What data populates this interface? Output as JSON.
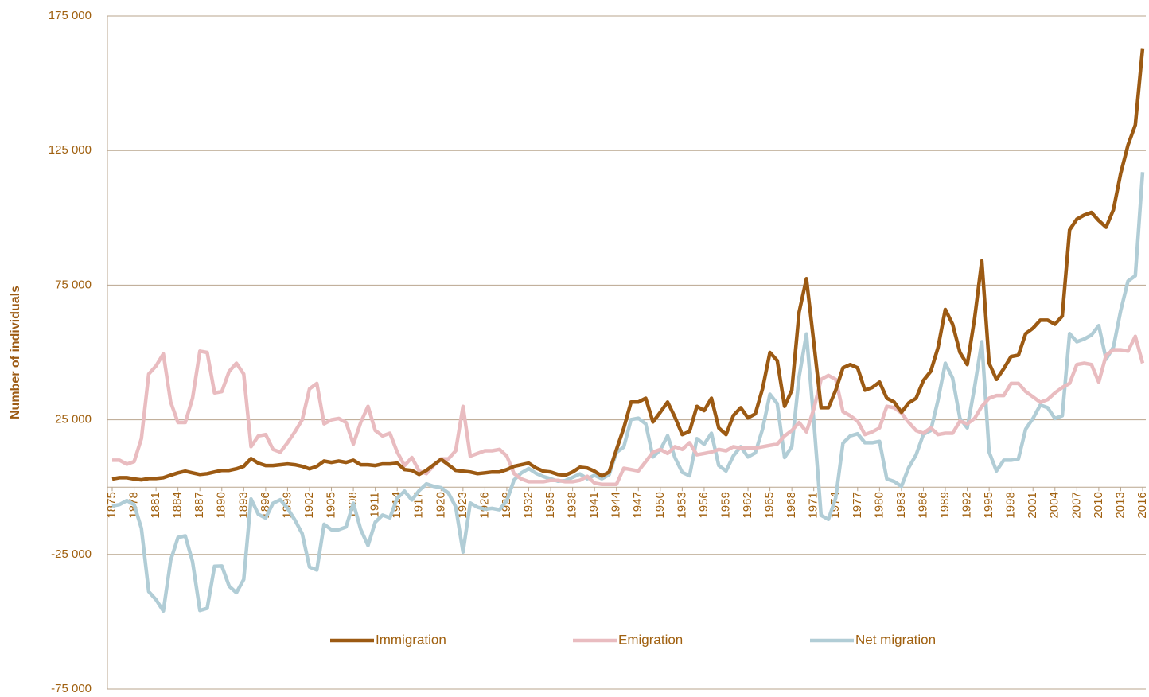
{
  "chart_data": {
    "type": "line",
    "y_label": "Number of individuals",
    "x": [
      1875,
      1876,
      1877,
      1878,
      1879,
      1880,
      1881,
      1882,
      1883,
      1884,
      1885,
      1886,
      1887,
      1888,
      1889,
      1890,
      1891,
      1892,
      1893,
      1894,
      1895,
      1896,
      1897,
      1898,
      1899,
      1900,
      1901,
      1902,
      1903,
      1904,
      1905,
      1906,
      1907,
      1908,
      1909,
      1910,
      1911,
      1912,
      1913,
      1914,
      1915,
      1916,
      1917,
      1918,
      1919,
      1920,
      1921,
      1922,
      1923,
      1924,
      1925,
      1926,
      1927,
      1928,
      1929,
      1930,
      1931,
      1932,
      1933,
      1934,
      1935,
      1936,
      1937,
      1938,
      1939,
      1940,
      1941,
      1942,
      1943,
      1944,
      1945,
      1946,
      1947,
      1948,
      1949,
      1950,
      1951,
      1952,
      1953,
      1954,
      1955,
      1956,
      1957,
      1958,
      1959,
      1960,
      1961,
      1962,
      1963,
      1964,
      1965,
      1966,
      1967,
      1968,
      1969,
      1970,
      1971,
      1972,
      1973,
      1974,
      1975,
      1976,
      1977,
      1978,
      1979,
      1980,
      1981,
      1982,
      1983,
      1984,
      1985,
      1986,
      1987,
      1988,
      1989,
      1990,
      1991,
      1992,
      1993,
      1994,
      1995,
      1996,
      1997,
      1998,
      1999,
      2000,
      2001,
      2002,
      2003,
      2004,
      2005,
      2006,
      2007,
      2008,
      2009,
      2010,
      2011,
      2012,
      2013,
      2014,
      2015,
      2016
    ],
    "xlim": [
      1875,
      2016
    ],
    "xticks": [
      1875,
      1878,
      1881,
      1884,
      1887,
      1890,
      1893,
      1896,
      1899,
      1902,
      1905,
      1908,
      1911,
      1914,
      1917,
      1920,
      1923,
      1926,
      1929,
      1932,
      1935,
      1938,
      1941,
      1944,
      1947,
      1950,
      1953,
      1956,
      1959,
      1962,
      1965,
      1968,
      1971,
      1974,
      1977,
      1980,
      1983,
      1986,
      1989,
      1992,
      1995,
      1998,
      2001,
      2004,
      2007,
      2010,
      2013,
      2016
    ],
    "ylim": [
      -75000,
      175000
    ],
    "yticks": [
      {
        "value": 175000,
        "label": "175 000"
      },
      {
        "value": 125000,
        "label": "125 000"
      },
      {
        "value": 75000,
        "label": "75 000"
      },
      {
        "value": 25000,
        "label": "25 000"
      },
      {
        "value": -25000,
        "label": "-25 000"
      },
      {
        "value": -75000,
        "label": "-75 000"
      }
    ],
    "grid": true,
    "legend": "bottom",
    "series": [
      {
        "name": "Immigration",
        "color": "#9c5a13",
        "values": [
          3000,
          3500,
          3500,
          3000,
          2700,
          3200,
          3200,
          3500,
          4400,
          5300,
          5900,
          5300,
          4700,
          5000,
          5600,
          6200,
          6200,
          6800,
          7700,
          10600,
          8900,
          8000,
          8000,
          8300,
          8600,
          8300,
          7700,
          6800,
          7700,
          9700,
          9200,
          9700,
          9200,
          10000,
          8300,
          8300,
          8000,
          8600,
          8600,
          8900,
          6500,
          6200,
          4700,
          6200,
          8300,
          10300,
          8300,
          6200,
          5900,
          5600,
          5000,
          5300,
          5600,
          5600,
          6500,
          7700,
          8300,
          8900,
          7100,
          5900,
          5600,
          4700,
          4400,
          5600,
          7400,
          7100,
          5900,
          4100,
          5600,
          13900,
          21900,
          31600,
          31600,
          33000,
          24200,
          27800,
          31600,
          26000,
          19500,
          20700,
          30000,
          28400,
          33000,
          22000,
          19500,
          26600,
          29500,
          25700,
          27200,
          36600,
          50000,
          47000,
          30000,
          36000,
          65000,
          77400,
          53800,
          29500,
          29500,
          36000,
          44300,
          45500,
          44300,
          36000,
          37000,
          39000,
          33000,
          31600,
          27800,
          31300,
          33000,
          39600,
          43000,
          51700,
          66000,
          60500,
          50000,
          45500,
          62600,
          84000,
          46000,
          40000,
          44000,
          48500,
          49000,
          57000,
          59000,
          62000,
          62000,
          60500,
          63500,
          95500,
          99500,
          101000,
          102000,
          99000,
          96500,
          103000,
          116500,
          127000,
          134500,
          163000
        ]
      },
      {
        "name": "Emigration",
        "color": "#e9bcc0",
        "values": [
          10000,
          10000,
          8500,
          9500,
          18000,
          42000,
          45000,
          49500,
          31600,
          24000,
          24000,
          33000,
          50500,
          50000,
          35000,
          35500,
          43000,
          46000,
          42000,
          15000,
          19000,
          19500,
          14000,
          13000,
          16500,
          20500,
          25000,
          36500,
          38500,
          23500,
          25000,
          25500,
          24000,
          16000,
          24000,
          30000,
          21000,
          19000,
          20000,
          13000,
          8000,
          11000,
          6000,
          5000,
          8000,
          10500,
          10500,
          13500,
          30000,
          11500,
          12500,
          13500,
          13500,
          14000,
          11500,
          5000,
          3000,
          2000,
          2000,
          2000,
          2500,
          2500,
          2000,
          2000,
          2500,
          4000,
          1500,
          1000,
          1000,
          1000,
          7000,
          6500,
          6000,
          9500,
          13000,
          14000,
          12500,
          15000,
          14000,
          16500,
          12000,
          12500,
          13000,
          14000,
          13500,
          15000,
          14500,
          14500,
          14500,
          15000,
          15500,
          16000,
          19000,
          21000,
          24000,
          20500,
          29000,
          40000,
          41500,
          40000,
          28000,
          26500,
          24500,
          19500,
          20500,
          22000,
          30000,
          29500,
          27500,
          24000,
          21000,
          20000,
          22000,
          19500,
          20000,
          20000,
          24500,
          23500,
          25500,
          30000,
          33000,
          34000,
          34000,
          38500,
          38500,
          35500,
          33500,
          31500,
          32500,
          35000,
          37000,
          38500,
          45500,
          46000,
          45500,
          39000,
          49000,
          51000,
          51000,
          50500,
          56000,
          46000
        ]
      },
      {
        "name": "Net migration",
        "color": "#b1cdd6",
        "values": [
          -7000,
          -6500,
          -5000,
          -6500,
          -15300,
          -38800,
          -41800,
          -46000,
          -27200,
          -18700,
          -18100,
          -27700,
          -45800,
          -45000,
          -29400,
          -29300,
          -36800,
          -39200,
          -34300,
          -4400,
          -10100,
          -11500,
          -6000,
          -4700,
          -7900,
          -12200,
          -17300,
          -29700,
          -30800,
          -13800,
          -15800,
          -15800,
          -14800,
          -6000,
          -15700,
          -21700,
          -13000,
          -10400,
          -11400,
          -4100,
          -1500,
          -4800,
          -1300,
          1200,
          300,
          -200,
          -2200,
          -7300,
          -24100,
          -5900,
          -7500,
          -8200,
          -7900,
          -8400,
          -5000,
          2700,
          5300,
          6900,
          5100,
          3900,
          3100,
          2200,
          2400,
          3600,
          4900,
          3100,
          4400,
          3100,
          4600,
          12900,
          14900,
          25100,
          25600,
          23500,
          11200,
          13800,
          19100,
          11000,
          5500,
          4200,
          18000,
          15900,
          20000,
          8000,
          6000,
          11600,
          15000,
          11200,
          12700,
          21600,
          34500,
          31000,
          11000,
          15000,
          41000,
          56900,
          24800,
          -10500,
          -12000,
          -4000,
          16300,
          19000,
          19800,
          16500,
          16500,
          17000,
          3000,
          2100,
          300,
          7300,
          12000,
          19600,
          21000,
          32200,
          46000,
          40500,
          25500,
          22000,
          37100,
          54000,
          13000,
          6000,
          10000,
          10000,
          10500,
          21500,
          25500,
          30500,
          29500,
          25500,
          26500,
          57000,
          54000,
          55000,
          56500,
          60000,
          47500,
          52000,
          65500,
          76500,
          78500,
          117000
        ]
      }
    ]
  }
}
